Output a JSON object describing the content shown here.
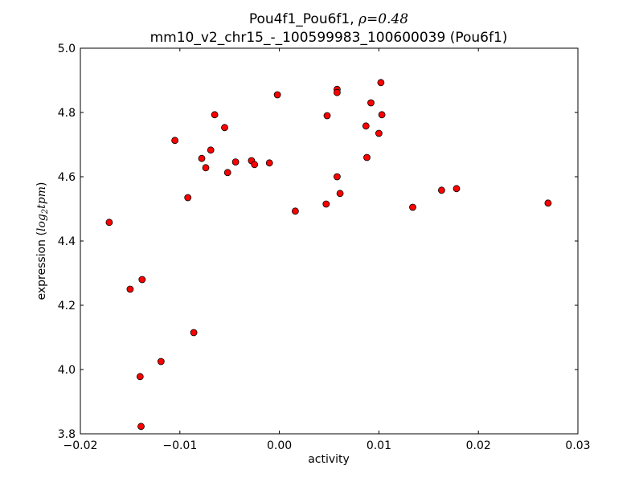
{
  "chart_data": {
    "type": "scatter",
    "title_line1_prefix": "Pou4f1_Pou6f1, ",
    "title_rho_symbol": "ρ",
    "title_rho_value": "=0.48",
    "title_line2": "mm10_v2_chr15_-_100599983_100600039 (Pou6f1)",
    "xlabel": "activity",
    "ylabel_prefix": "expression (",
    "ylabel_math_base": "log",
    "ylabel_math_sub": "2",
    "ylabel_math_rest": "tpm",
    "ylabel_suffix": ")",
    "xlim": [
      -0.02,
      0.03
    ],
    "ylim": [
      3.8,
      5.0
    ],
    "xticks": [
      -0.02,
      -0.01,
      0.0,
      0.01,
      0.02,
      0.03
    ],
    "xtick_labels": [
      "−0.02",
      "−0.01",
      "0.00",
      "0.01",
      "0.02",
      "0.03"
    ],
    "yticks": [
      3.8,
      4.0,
      4.2,
      4.4,
      4.6,
      4.8,
      5.0
    ],
    "ytick_labels": [
      "3.8",
      "4.0",
      "4.2",
      "4.4",
      "4.6",
      "4.8",
      "5.0"
    ],
    "grid": false,
    "marker_color": "#ff0000",
    "marker_edge": "#000000",
    "points": [
      {
        "x": -0.0171,
        "y": 4.458
      },
      {
        "x": -0.015,
        "y": 4.25
      },
      {
        "x": -0.0138,
        "y": 4.28
      },
      {
        "x": -0.014,
        "y": 3.978
      },
      {
        "x": -0.0139,
        "y": 3.823
      },
      {
        "x": -0.0119,
        "y": 4.025
      },
      {
        "x": -0.0105,
        "y": 4.713
      },
      {
        "x": -0.0092,
        "y": 4.535
      },
      {
        "x": -0.0086,
        "y": 4.115
      },
      {
        "x": -0.0078,
        "y": 4.657
      },
      {
        "x": -0.0074,
        "y": 4.628
      },
      {
        "x": -0.0069,
        "y": 4.683
      },
      {
        "x": -0.0065,
        "y": 4.793
      },
      {
        "x": -0.0055,
        "y": 4.753
      },
      {
        "x": -0.0052,
        "y": 4.613
      },
      {
        "x": -0.0044,
        "y": 4.646
      },
      {
        "x": -0.0028,
        "y": 4.65
      },
      {
        "x": -0.0025,
        "y": 4.638
      },
      {
        "x": -0.001,
        "y": 4.643
      },
      {
        "x": -0.0002,
        "y": 4.855
      },
      {
        "x": 0.0016,
        "y": 4.493
      },
      {
        "x": 0.0047,
        "y": 4.515
      },
      {
        "x": 0.0048,
        "y": 4.79
      },
      {
        "x": 0.0058,
        "y": 4.6
      },
      {
        "x": 0.0058,
        "y": 4.872
      },
      {
        "x": 0.0058,
        "y": 4.862
      },
      {
        "x": 0.0061,
        "y": 4.548
      },
      {
        "x": 0.0087,
        "y": 4.758
      },
      {
        "x": 0.0088,
        "y": 4.66
      },
      {
        "x": 0.0092,
        "y": 4.83
      },
      {
        "x": 0.01,
        "y": 4.735
      },
      {
        "x": 0.0102,
        "y": 4.893
      },
      {
        "x": 0.0103,
        "y": 4.793
      },
      {
        "x": 0.0134,
        "y": 4.505
      },
      {
        "x": 0.0163,
        "y": 4.558
      },
      {
        "x": 0.0178,
        "y": 4.563
      },
      {
        "x": 0.027,
        "y": 4.518
      }
    ]
  }
}
